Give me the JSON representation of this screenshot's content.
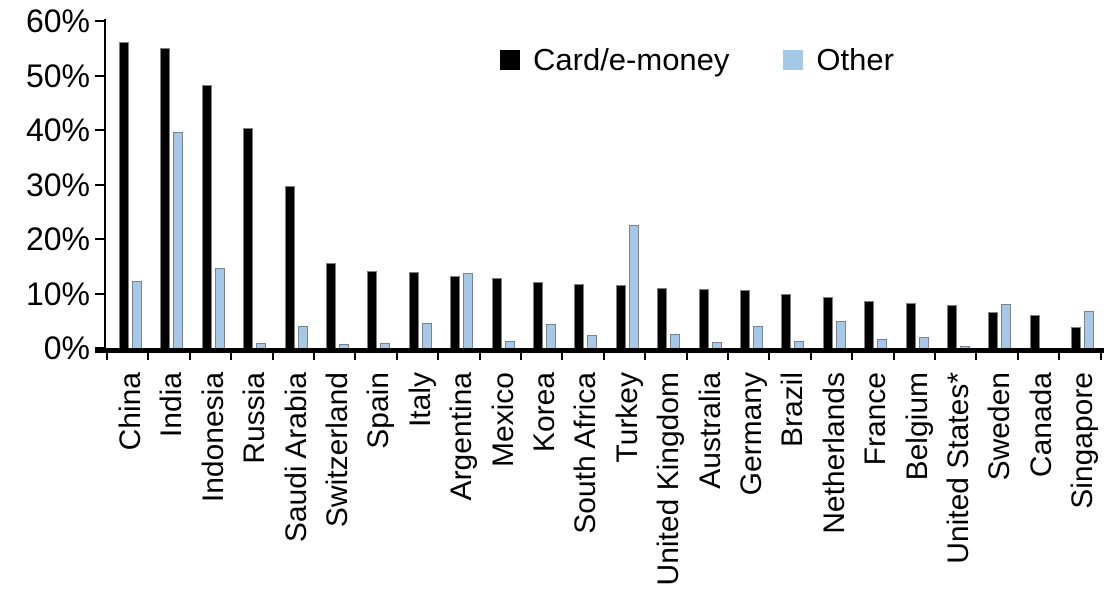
{
  "chart_data": {
    "type": "bar",
    "title": "",
    "xlabel": "",
    "ylabel": "",
    "ylim": [
      0,
      60
    ],
    "ytick_step": 10,
    "yticks": [
      "0%",
      "10%",
      "20%",
      "30%",
      "40%",
      "50%",
      "60%"
    ],
    "grid": false,
    "legend_position": "top-center",
    "categories": [
      "China",
      "India",
      "Indonesia",
      "Russia",
      "Saudi Arabia",
      "Switzerland",
      "Spain",
      "Italy",
      "Argentina",
      "Mexico",
      "Korea",
      "South Africa",
      "Turkey",
      "United Kingdom",
      "Australia",
      "Germany",
      "Brazil",
      "Netherlands",
      "France",
      "Belgium",
      "United States*",
      "Sweden",
      "Canada",
      "Singapore"
    ],
    "series": [
      {
        "name": "Card/e-money",
        "color": "#000000",
        "values": [
          56.2,
          55.0,
          48.2,
          40.4,
          29.8,
          15.6,
          14.2,
          14.0,
          13.3,
          12.9,
          12.2,
          11.8,
          11.6,
          11.0,
          10.8,
          10.6,
          10.0,
          9.3,
          8.6,
          8.2,
          7.9,
          6.6,
          6.1,
          3.9
        ]
      },
      {
        "name": "Other",
        "color": "#A6C8E8",
        "values": [
          12.3,
          39.7,
          14.6,
          1.0,
          4.0,
          0.8,
          1.0,
          4.6,
          13.8,
          1.3,
          4.4,
          2.3,
          22.6,
          2.5,
          1.1,
          4.0,
          1.2,
          4.9,
          1.6,
          2.1,
          0.4,
          8.1,
          0.0,
          6.7
        ]
      }
    ]
  }
}
